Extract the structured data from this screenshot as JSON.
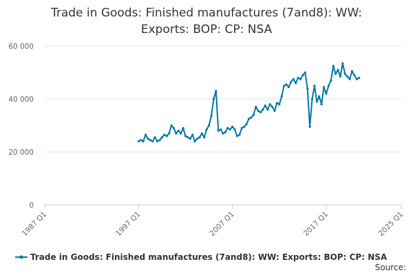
{
  "chart_data": {
    "type": "line",
    "title_lines": [
      "Trade in Goods: Finished manufactures (7and8): WW:",
      "Exports: BOP: CP: NSA"
    ],
    "xlabel": "",
    "ylabel": "",
    "ylim": [
      0,
      60000
    ],
    "yticks": [
      0,
      20000,
      40000,
      60000
    ],
    "ytick_labels": [
      "0",
      "20 000",
      "40 000",
      "60 000"
    ],
    "x_range": [
      "1987 Q1",
      "2025 Q1"
    ],
    "xtick_labels": [
      "1987 Q1",
      "1997 Q1",
      "2007 Q1",
      "2017 Q1",
      "2025 Q1"
    ],
    "grid": "horizontal",
    "legend_position": "bottom",
    "series": [
      {
        "name": "Trade in Goods: Finished manufactures (7and8): WW: Exports: BOP: CP: NSA",
        "color": "#0075a3",
        "points": [
          [
            "1997 Q1",
            24000
          ],
          [
            "1997 Q2",
            24500
          ],
          [
            "1997 Q3",
            24000
          ],
          [
            "1997 Q4",
            26500
          ],
          [
            "1998 Q1",
            25000
          ],
          [
            "1998 Q2",
            24500
          ],
          [
            "1998 Q3",
            24000
          ],
          [
            "1998 Q4",
            25500
          ],
          [
            "1999 Q1",
            24000
          ],
          [
            "1999 Q2",
            24500
          ],
          [
            "1999 Q3",
            25500
          ],
          [
            "1999 Q4",
            26500
          ],
          [
            "2000 Q1",
            26000
          ],
          [
            "2000 Q2",
            27000
          ],
          [
            "2000 Q3",
            30000
          ],
          [
            "2000 Q4",
            29000
          ],
          [
            "2001 Q1",
            27000
          ],
          [
            "2001 Q2",
            28000
          ],
          [
            "2001 Q3",
            27000
          ],
          [
            "2001 Q4",
            29000
          ],
          [
            "2002 Q1",
            26000
          ],
          [
            "2002 Q2",
            25500
          ],
          [
            "2002 Q3",
            25000
          ],
          [
            "2002 Q4",
            26500
          ],
          [
            "2003 Q1",
            24000
          ],
          [
            "2003 Q2",
            25000
          ],
          [
            "2003 Q3",
            25500
          ],
          [
            "2003 Q4",
            27000
          ],
          [
            "2004 Q1",
            25500
          ],
          [
            "2004 Q2",
            28500
          ],
          [
            "2004 Q3",
            30000
          ],
          [
            "2004 Q4",
            33500
          ],
          [
            "2005 Q1",
            40000
          ],
          [
            "2005 Q2",
            43000
          ],
          [
            "2005 Q3",
            28000
          ],
          [
            "2005 Q4",
            28500
          ],
          [
            "2006 Q1",
            27000
          ],
          [
            "2006 Q2",
            27500
          ],
          [
            "2006 Q3",
            29000
          ],
          [
            "2006 Q4",
            28500
          ],
          [
            "2007 Q1",
            29500
          ],
          [
            "2007 Q2",
            28500
          ],
          [
            "2007 Q3",
            26000
          ],
          [
            "2007 Q4",
            26500
          ],
          [
            "2008 Q1",
            29000
          ],
          [
            "2008 Q2",
            29500
          ],
          [
            "2008 Q3",
            30500
          ],
          [
            "2008 Q4",
            32500
          ],
          [
            "2009 Q1",
            33000
          ],
          [
            "2009 Q2",
            34000
          ],
          [
            "2009 Q3",
            37000
          ],
          [
            "2009 Q4",
            35500
          ],
          [
            "2010 Q1",
            35000
          ],
          [
            "2010 Q2",
            36000
          ],
          [
            "2010 Q3",
            37500
          ],
          [
            "2010 Q4",
            36000
          ],
          [
            "2011 Q1",
            38000
          ],
          [
            "2011 Q2",
            37000
          ],
          [
            "2011 Q3",
            35500
          ],
          [
            "2011 Q4",
            38500
          ],
          [
            "2012 Q1",
            38000
          ],
          [
            "2012 Q2",
            41000
          ],
          [
            "2012 Q3",
            45000
          ],
          [
            "2012 Q4",
            45500
          ],
          [
            "2013 Q1",
            44500
          ],
          [
            "2013 Q2",
            46500
          ],
          [
            "2013 Q3",
            47500
          ],
          [
            "2013 Q4",
            46000
          ],
          [
            "2014 Q1",
            48000
          ],
          [
            "2014 Q2",
            47500
          ],
          [
            "2014 Q3",
            49000
          ],
          [
            "2014 Q4",
            50000
          ],
          [
            "2015 Q1",
            44000
          ],
          [
            "2015 Q2",
            29500
          ],
          [
            "2015 Q3",
            40000
          ],
          [
            "2015 Q4",
            45000
          ],
          [
            "2016 Q1",
            39000
          ],
          [
            "2016 Q2",
            41000
          ],
          [
            "2016 Q3",
            38000
          ],
          [
            "2016 Q4",
            44500
          ],
          [
            "2017 Q1",
            42000
          ],
          [
            "2017 Q2",
            45000
          ],
          [
            "2017 Q3",
            47000
          ],
          [
            "2017 Q4",
            52500
          ],
          [
            "2018 Q1",
            49500
          ],
          [
            "2018 Q2",
            51000
          ],
          [
            "2018 Q3",
            48500
          ],
          [
            "2018 Q4",
            53500
          ],
          [
            "2019 Q1",
            49500
          ],
          [
            "2019 Q2",
            48500
          ],
          [
            "2019 Q3",
            47500
          ],
          [
            "2019 Q4",
            50500
          ],
          [
            "2020 Q1",
            49000
          ],
          [
            "2020 Q2",
            47500
          ],
          [
            "2020 Q3",
            48000
          ]
        ]
      }
    ],
    "source_label": "Source:"
  }
}
